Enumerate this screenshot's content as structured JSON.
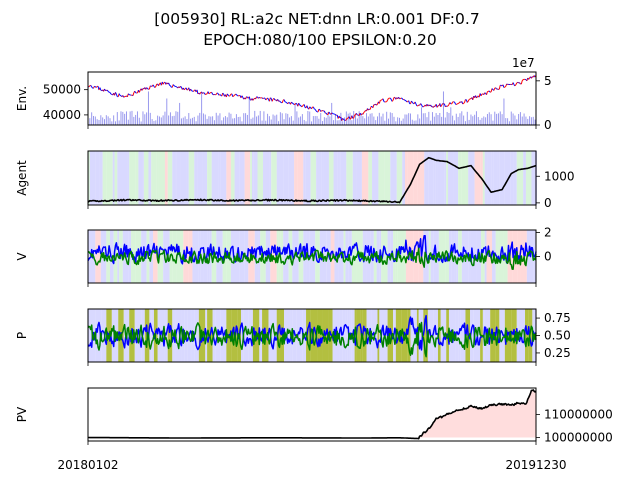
{
  "figure": {
    "title_line1": "[005930] RL:a2c NET:dnn LR:0.001 DF:0.7",
    "title_line2": "EPOCH:080/100 EPSILON:0.20"
  },
  "x_axis": {
    "start_label": "20180102",
    "end_label": "20191230",
    "n_days": 490
  },
  "chart_data": [
    {
      "panel": "env",
      "type": "line",
      "ylabel": "Env.",
      "left_ylim": [
        36000,
        57000
      ],
      "left_ticks": [
        "40000",
        "50000"
      ],
      "right_ylim": [
        0,
        60000000
      ],
      "right_ticks": [
        "0",
        "5"
      ],
      "right_offset_label": "1e7",
      "price_series": {
        "name": "",
        "x_index": [
          0,
          20,
          40,
          60,
          80,
          100,
          120,
          140,
          160,
          180,
          200,
          220,
          240,
          260,
          280,
          300,
          320,
          340,
          350,
          370,
          390,
          410,
          430,
          450,
          470,
          489
        ],
        "values": [
          52000,
          49500,
          47000,
          50000,
          52500,
          51000,
          49000,
          48000,
          47500,
          46500,
          46000,
          45000,
          43000,
          41000,
          38000,
          41000,
          45500,
          46500,
          45000,
          43500,
          44000,
          45000,
          48000,
          51000,
          52500,
          55500
        ]
      },
      "volume_series": {
        "name": "",
        "note_levels": "bars (shares)",
        "typical": 10000000,
        "spikes": [
          20000000,
          38000000,
          25000000,
          30000000
        ]
      },
      "colors": {
        "rising": "#ff0000",
        "falling": "#0000ff",
        "volume": "#9999ee"
      }
    },
    {
      "panel": "agent",
      "type": "line",
      "ylabel": "Agent",
      "ylim": [
        -80,
        1950
      ],
      "ticks": [
        "0",
        "1000"
      ],
      "series": [
        {
          "name": "",
          "x_index": [
            0,
            40,
            80,
            120,
            160,
            200,
            240,
            280,
            320,
            340,
            352,
            362,
            372,
            380,
            392,
            405,
            418,
            430,
            440,
            452,
            462,
            470,
            480,
            489
          ],
          "values": [
            30,
            80,
            60,
            90,
            60,
            80,
            50,
            70,
            30,
            10,
            700,
            1450,
            1700,
            1600,
            1550,
            1300,
            1400,
            900,
            400,
            500,
            1100,
            1250,
            1300,
            1400
          ]
        }
      ],
      "action_shading": {
        "buy": "#ffcccc",
        "sell": "#ccccff",
        "hold": "#ccf0cc"
      }
    },
    {
      "panel": "value",
      "type": "line",
      "ylabel": "V",
      "ylim": [
        -2.2,
        2.2
      ],
      "ticks": [
        "0",
        "2"
      ],
      "series": [
        {
          "name": "",
          "color": "#0000ff",
          "amplitude": 1.0,
          "center": 0.3
        },
        {
          "name": "",
          "color": "#008000",
          "amplitude": 0.8,
          "center": -0.1
        }
      ]
    },
    {
      "panel": "policy",
      "type": "line",
      "ylabel": "P",
      "ylim": [
        0.12,
        0.88
      ],
      "ticks": [
        "0.25",
        "0.50",
        "0.75"
      ],
      "series": [
        {
          "name": "",
          "color": "#0000ff",
          "amplitude": 0.2,
          "center": 0.52
        },
        {
          "name": "",
          "color": "#008000",
          "amplitude": 0.2,
          "center": 0.47
        }
      ],
      "shading_colors": {
        "buy": "#99aa00",
        "sell": "#ccccff"
      }
    },
    {
      "panel": "pv",
      "type": "line",
      "ylabel": "PV",
      "ylim": [
        98500000,
        121500000
      ],
      "ticks": [
        "100000000",
        "110000000"
      ],
      "series": [
        {
          "name": "",
          "x_index": [
            0,
            100,
            200,
            300,
            340,
            352,
            360,
            372,
            380,
            392,
            405,
            418,
            430,
            440,
            452,
            462,
            470,
            478,
            484,
            489
          ],
          "values": [
            100000000,
            99800000,
            99900000,
            99800000,
            99900000,
            99700000,
            99600000,
            104000000,
            108000000,
            110000000,
            112000000,
            113500000,
            112500000,
            114000000,
            114500000,
            114000000,
            115000000,
            114500000,
            120500000,
            120000000
          ]
        }
      ],
      "fill_color": "#ffdddd",
      "baseline": 100000000
    }
  ]
}
